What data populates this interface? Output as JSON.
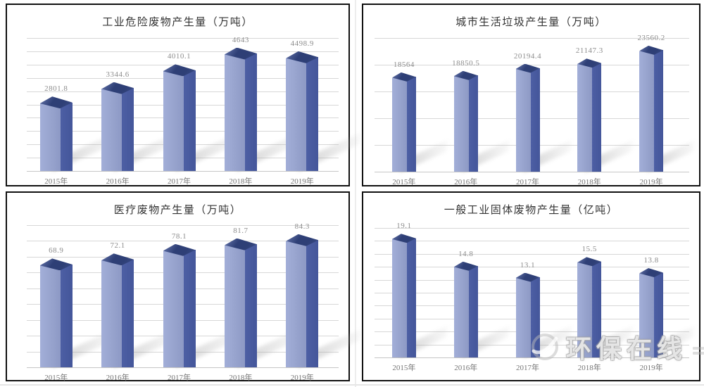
{
  "watermark": {
    "text": "环保在线",
    "logo_icon": "swoosh-ring-icon"
  },
  "colors": {
    "bar_front": "#97a3cd",
    "bar_side": "#44569a",
    "bar_top": "#2e3f76",
    "bar_top_highlight": "#90a0cf",
    "gridline": "#d7d7d7",
    "axis": "#c6c6c6",
    "value_label": "#8c8c8c",
    "category_label": "#757575",
    "title": "#333333",
    "panel_border": "#111111",
    "shadow": "#9e9e9e"
  },
  "chart_data": [
    {
      "type": "bar",
      "title": "工业危险废物产生量（万吨）",
      "unit": "万吨",
      "categories": [
        "2015年",
        "2016年",
        "2017年",
        "2018年",
        "2019年"
      ],
      "values": [
        2801.8,
        3344.6,
        4010.1,
        4643,
        4498.9
      ],
      "value_labels": [
        "2801.8",
        "3344.6",
        "4010.1",
        "4643",
        "4498.9"
      ],
      "xlabel": "",
      "ylabel": "",
      "ylim": [
        0,
        5000
      ],
      "gridline_count": 10,
      "grid": true,
      "legend": false,
      "style": "3d-column"
    },
    {
      "type": "bar",
      "title": "城市生活垃圾产生量（万吨）",
      "unit": "万吨",
      "categories": [
        "2015年",
        "2016年",
        "2017年",
        "2018年",
        "2019年"
      ],
      "values": [
        18564,
        18850.5,
        20194.4,
        21147.3,
        23560.2
      ],
      "value_labels": [
        "18564",
        "18850.5",
        "20194.4",
        "21147.3",
        "23560.2"
      ],
      "xlabel": "",
      "ylabel": "",
      "ylim": [
        0,
        25000
      ],
      "gridline_count": 5,
      "grid": true,
      "legend": false,
      "style": "3d-column"
    },
    {
      "type": "bar",
      "title": "医疗废物产生量（万吨）",
      "unit": "万吨",
      "categories": [
        "2015年",
        "2016年",
        "2017年",
        "2018年",
        "2019年"
      ],
      "values": [
        68.9,
        72.1,
        78.1,
        81.7,
        84.3
      ],
      "value_labels": [
        "68.9",
        "72.1",
        "78.1",
        "81.7",
        "84.3"
      ],
      "xlabel": "",
      "ylabel": "",
      "ylim": [
        0,
        90
      ],
      "gridline_count": 9,
      "grid": true,
      "legend": false,
      "style": "3d-column"
    },
    {
      "type": "bar",
      "title": "一般工业固体废物产生量（亿吨）",
      "unit": "亿吨",
      "categories": [
        "2015年",
        "2016年",
        "2017年",
        "2018年",
        "2019年"
      ],
      "values": [
        19.1,
        14.8,
        13.1,
        15.5,
        13.8
      ],
      "value_labels": [
        "19.1",
        "14.8",
        "13.1",
        "15.5",
        "13.8"
      ],
      "xlabel": "",
      "ylabel": "",
      "ylim": [
        0,
        20
      ],
      "gridline_count": 10,
      "grid": true,
      "legend": false,
      "style": "3d-column"
    }
  ]
}
